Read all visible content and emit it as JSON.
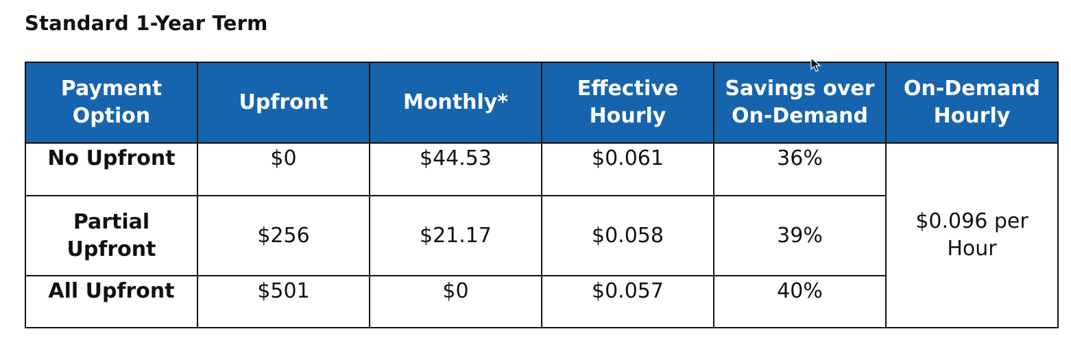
{
  "heading": "Standard 1-Year Term",
  "table": {
    "headers": {
      "payment_option": "Payment Option",
      "upfront": "Upfront",
      "monthly": "Monthly*",
      "effective_hourly": "Effective Hourly",
      "savings": "Savings over On-Demand",
      "ondemand_hourly": "On-Demand Hourly"
    },
    "rows": [
      {
        "payment_option": "No Upfront",
        "upfront": "$0",
        "monthly": "$44.53",
        "effective_hourly": "$0.061",
        "savings": "36%"
      },
      {
        "payment_option": "Partial Upfront",
        "upfront": "$256",
        "monthly": "$21.17",
        "effective_hourly": "$0.058",
        "savings": "39%"
      },
      {
        "payment_option": "All Upfront",
        "upfront": "$501",
        "monthly": "$0",
        "effective_hourly": "$0.057",
        "savings": "40%"
      }
    ],
    "ondemand_value": "$0.096 per Hour"
  },
  "colors": {
    "header_bg": "#1764ae",
    "header_text": "#ffffff",
    "border": "#111111"
  }
}
